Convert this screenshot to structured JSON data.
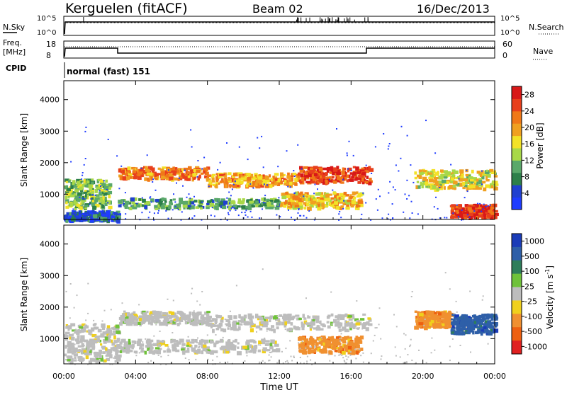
{
  "header": {
    "station": "Kerguelen (fitACF)",
    "beam": "Beam 02",
    "date": "16/Dec/2013"
  },
  "params_panel": {
    "nsky_label": "N.Sky",
    "nsearch_label": "N.Search",
    "nsky_ticks": [
      "10^5",
      "10^0"
    ],
    "nsearch_ticks": [
      "10^5",
      "10^0"
    ],
    "freq_label": "Freq.",
    "freq_unit": "[MHz]",
    "freq_ticks": [
      "18",
      "8"
    ],
    "nave_label": "Nave",
    "nave_ticks": [
      "60",
      "0"
    ],
    "cpid_label": "CPID",
    "cpid_value": "normal (fast) 151"
  },
  "colors": {
    "power": [
      "#1f3cff",
      "#2040d0",
      "#2d7f4a",
      "#5aa86a",
      "#a8d848",
      "#f3e227",
      "#f0a020",
      "#f07818",
      "#e8401c",
      "#d81818"
    ],
    "velocity": [
      "#1a3cb8",
      "#2e5fa8",
      "#2e7d5a",
      "#6fc23a",
      "#bdbdbd",
      "#f0d01c",
      "#f09030",
      "#ee6010",
      "#e02020"
    ]
  },
  "chart_data": [
    {
      "type": "heatmap",
      "name": "power",
      "ylabel": "Slant Range [km]",
      "yticks": [
        "1000",
        "2000",
        "3000",
        "4000"
      ],
      "ylim": [
        200,
        4600
      ],
      "xlim": [
        0,
        24
      ],
      "xticks": [
        "00:00",
        "04:00",
        "08:00",
        "12:00",
        "16:00",
        "20:00",
        "00:00"
      ],
      "colorbar": {
        "label": "Power [dB]",
        "ticks": [
          "4",
          "8",
          "12",
          "16",
          "20",
          "24",
          "28"
        ],
        "range": [
          0,
          30
        ]
      },
      "bands": [
        {
          "t0": 0.0,
          "t1": 3.0,
          "r0": 200,
          "r1": 500,
          "value": 6
        },
        {
          "t0": 0.0,
          "t1": 2.5,
          "r0": 600,
          "r1": 1500,
          "value": 12
        },
        {
          "t0": 3.0,
          "t1": 8.0,
          "r0": 1500,
          "r1": 1900,
          "value": 22
        },
        {
          "t0": 8.0,
          "t1": 13.0,
          "r0": 1300,
          "r1": 1700,
          "value": 20
        },
        {
          "t0": 13.0,
          "t1": 17.0,
          "r0": 1400,
          "r1": 1900,
          "value": 26
        },
        {
          "t0": 3.0,
          "t1": 12.0,
          "r0": 600,
          "r1": 900,
          "value": 10
        },
        {
          "t0": 12.0,
          "t1": 16.5,
          "r0": 600,
          "r1": 1100,
          "value": 18
        },
        {
          "t0": 19.5,
          "t1": 24.0,
          "r0": 1200,
          "r1": 1800,
          "value": 16
        },
        {
          "t0": 21.5,
          "t1": 24.0,
          "r0": 300,
          "r1": 700,
          "value": 26
        }
      ],
      "xlabel": ""
    },
    {
      "type": "heatmap",
      "name": "velocity",
      "ylabel": "Slant Range [km]",
      "yticks": [
        "1000",
        "2000",
        "3000",
        "4000"
      ],
      "ylim": [
        200,
        4600
      ],
      "xlim": [
        0,
        24
      ],
      "xticks": [
        "00:00",
        "04:00",
        "08:00",
        "12:00",
        "16:00",
        "20:00",
        "00:00"
      ],
      "xlabel": "Time UT",
      "colorbar": {
        "label": "Velocity [m s",
        "label_sup": "-1",
        "label_end": "]",
        "ticks": [
          "1000",
          "500",
          "100",
          "25",
          "-25",
          "-100",
          "-500",
          "-1000"
        ]
      },
      "bands": [
        {
          "t0": 0.0,
          "t1": 3.0,
          "r0": 300,
          "r1": 1500,
          "value": 0
        },
        {
          "t0": 3.0,
          "t1": 8.0,
          "r0": 1500,
          "r1": 1900,
          "value": 0
        },
        {
          "t0": 8.0,
          "t1": 17.0,
          "r0": 1300,
          "r1": 1800,
          "value": 0
        },
        {
          "t0": 3.0,
          "t1": 12.0,
          "r0": 600,
          "r1": 1000,
          "value": 0
        },
        {
          "t0": 13.0,
          "t1": 16.5,
          "r0": 600,
          "r1": 1100,
          "value": -200
        },
        {
          "t0": 19.5,
          "t1": 21.5,
          "r0": 1400,
          "r1": 1900,
          "value": -200
        },
        {
          "t0": 21.5,
          "t1": 24.0,
          "r0": 1200,
          "r1": 1800,
          "value": 600
        }
      ]
    }
  ]
}
